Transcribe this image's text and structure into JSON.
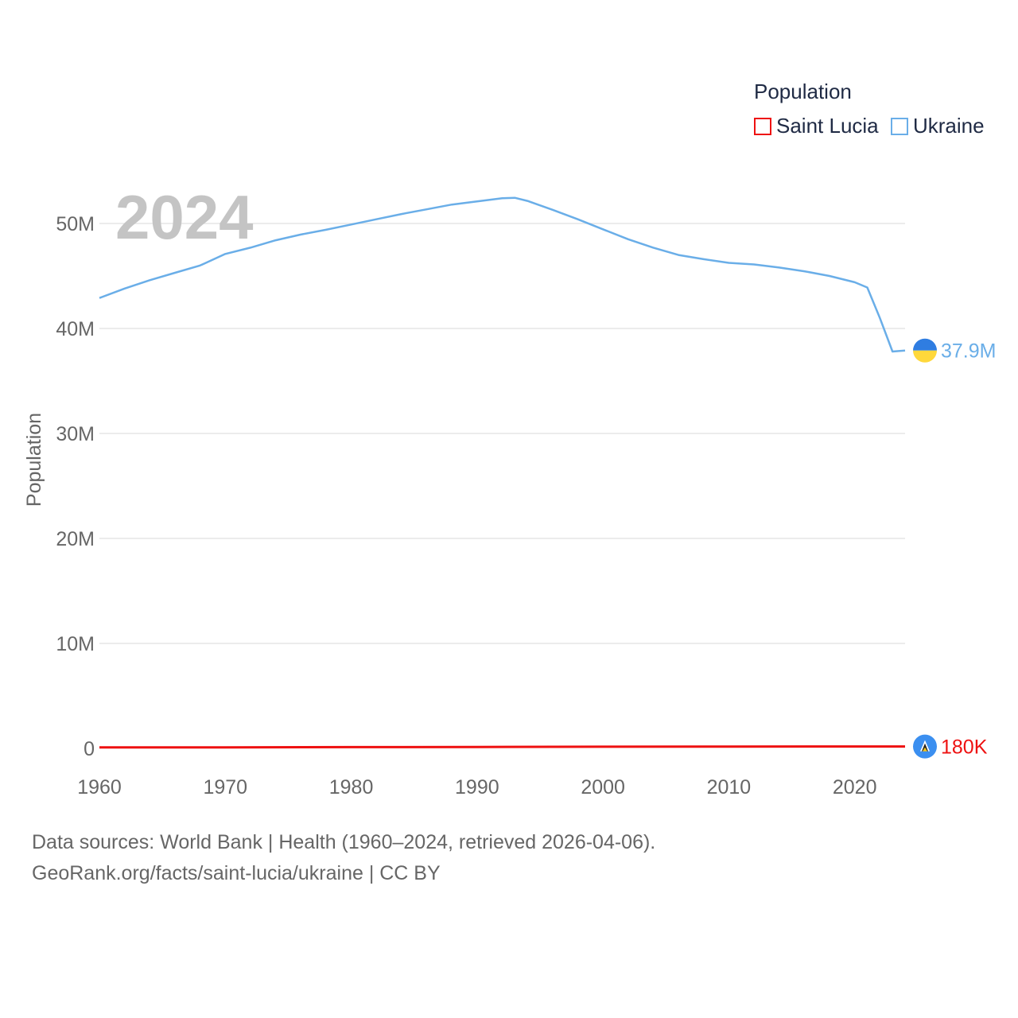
{
  "legend": {
    "title": "Population",
    "items": [
      {
        "label": "Saint Lucia",
        "color": "#ee1111"
      },
      {
        "label": "Ukraine",
        "color": "#6aaee8"
      }
    ]
  },
  "footer": {
    "line1": "Data sources: World Bank | Health (1960–2024, retrieved 2026-04-06).",
    "line2": "GeoRank.org/facts/saint-lucia/ukraine | CC BY"
  },
  "chart_data": {
    "type": "line",
    "title": "Population",
    "year_label": "2024",
    "xlabel": "",
    "ylabel": "Population",
    "xlim": [
      1960,
      2024
    ],
    "ylim": [
      0,
      55000000
    ],
    "x_ticks": [
      1960,
      1970,
      1980,
      1990,
      2000,
      2010,
      2020
    ],
    "y_ticks": [
      {
        "value": 0,
        "label": "0"
      },
      {
        "value": 10000000,
        "label": "10M"
      },
      {
        "value": 20000000,
        "label": "20M"
      },
      {
        "value": 30000000,
        "label": "30M"
      },
      {
        "value": 40000000,
        "label": "40M"
      },
      {
        "value": 50000000,
        "label": "50M"
      }
    ],
    "grid": true,
    "series": [
      {
        "name": "Ukraine",
        "color": "#6aaee8",
        "end_label": "37.9M",
        "flag_icon": "ukraine-flag-icon",
        "points": [
          [
            1960,
            42900000
          ],
          [
            1962,
            43800000
          ],
          [
            1964,
            44600000
          ],
          [
            1966,
            45300000
          ],
          [
            1968,
            46000000
          ],
          [
            1970,
            47100000
          ],
          [
            1972,
            47700000
          ],
          [
            1974,
            48400000
          ],
          [
            1976,
            48950000
          ],
          [
            1978,
            49400000
          ],
          [
            1980,
            49900000
          ],
          [
            1982,
            50400000
          ],
          [
            1984,
            50900000
          ],
          [
            1986,
            51350000
          ],
          [
            1988,
            51800000
          ],
          [
            1990,
            52100000
          ],
          [
            1992,
            52400000
          ],
          [
            1993,
            52450000
          ],
          [
            1994,
            52150000
          ],
          [
            1996,
            51300000
          ],
          [
            1998,
            50400000
          ],
          [
            2000,
            49450000
          ],
          [
            2002,
            48500000
          ],
          [
            2004,
            47700000
          ],
          [
            2006,
            47000000
          ],
          [
            2008,
            46600000
          ],
          [
            2010,
            46250000
          ],
          [
            2012,
            46100000
          ],
          [
            2014,
            45800000
          ],
          [
            2016,
            45450000
          ],
          [
            2018,
            45000000
          ],
          [
            2020,
            44400000
          ],
          [
            2021,
            43900000
          ],
          [
            2022,
            41000000
          ],
          [
            2023,
            37800000
          ],
          [
            2024,
            37900000
          ]
        ]
      },
      {
        "name": "Saint Lucia",
        "color": "#ee1111",
        "end_label": "180K",
        "flag_icon": "saint-lucia-flag-icon",
        "points": [
          [
            1960,
            90000
          ],
          [
            1970,
            102000
          ],
          [
            1980,
            118000
          ],
          [
            1990,
            139000
          ],
          [
            2000,
            157000
          ],
          [
            2010,
            172000
          ],
          [
            2020,
            179000
          ],
          [
            2024,
            180000
          ]
        ]
      }
    ]
  }
}
